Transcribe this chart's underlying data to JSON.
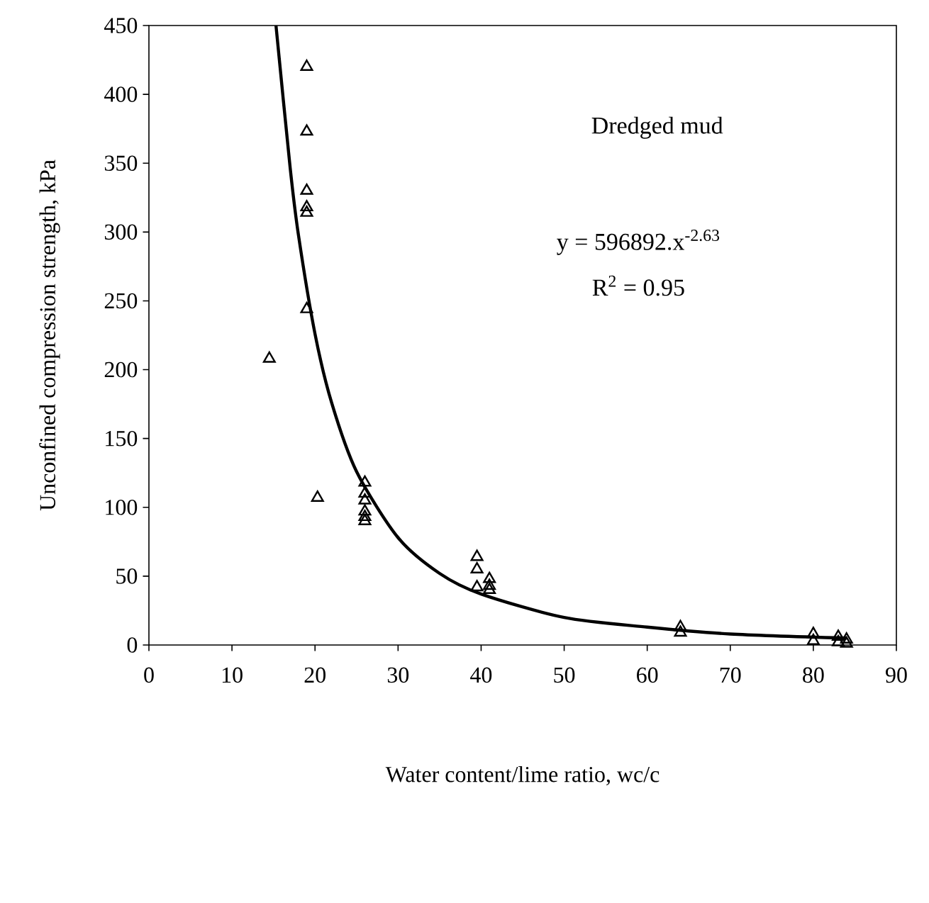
{
  "chart_data": {
    "type": "scatter",
    "xlabel": "Water content/lime ratio, wc/c",
    "ylabel": "Unconfined compression strength, kPa",
    "xlim": [
      0,
      90
    ],
    "ylim": [
      0,
      450
    ],
    "xticks": [
      0,
      10,
      20,
      30,
      40,
      50,
      60,
      70,
      80,
      90
    ],
    "yticks": [
      0,
      50,
      100,
      150,
      200,
      250,
      300,
      350,
      400,
      450
    ],
    "grid": false,
    "annotations": [
      "Dredged mud",
      "y = 596892.x$^{-2.63}$",
      "R$^{2}$ = 0.95"
    ],
    "series": [
      {
        "color": "#000000",
        "marker": "triangle",
        "x": [
          19,
          19,
          19,
          19,
          19,
          19,
          14.5,
          20.3,
          26,
          26,
          26,
          26,
          26,
          26,
          39.5,
          39.5,
          39.5,
          41,
          41,
          41,
          64,
          64,
          80,
          80,
          83,
          83,
          84,
          84
        ],
        "values": [
          420,
          373,
          330,
          318,
          314,
          244,
          208,
          107,
          118,
          110,
          105,
          97,
          93,
          90,
          64,
          55,
          42,
          48,
          43,
          40,
          13,
          9,
          8,
          3,
          6,
          2,
          4,
          1
        ]
      },
      {
        "type": "line",
        "color": "#000000",
        "marker": "none",
        "x": [
          15.3,
          17,
          18,
          20,
          22,
          25,
          30,
          35,
          40,
          50,
          60,
          70,
          84
        ],
        "values": [
          450,
          347,
          298,
          226,
          176,
          126,
          78,
          52,
          37,
          20,
          13,
          8,
          5
        ]
      }
    ]
  }
}
